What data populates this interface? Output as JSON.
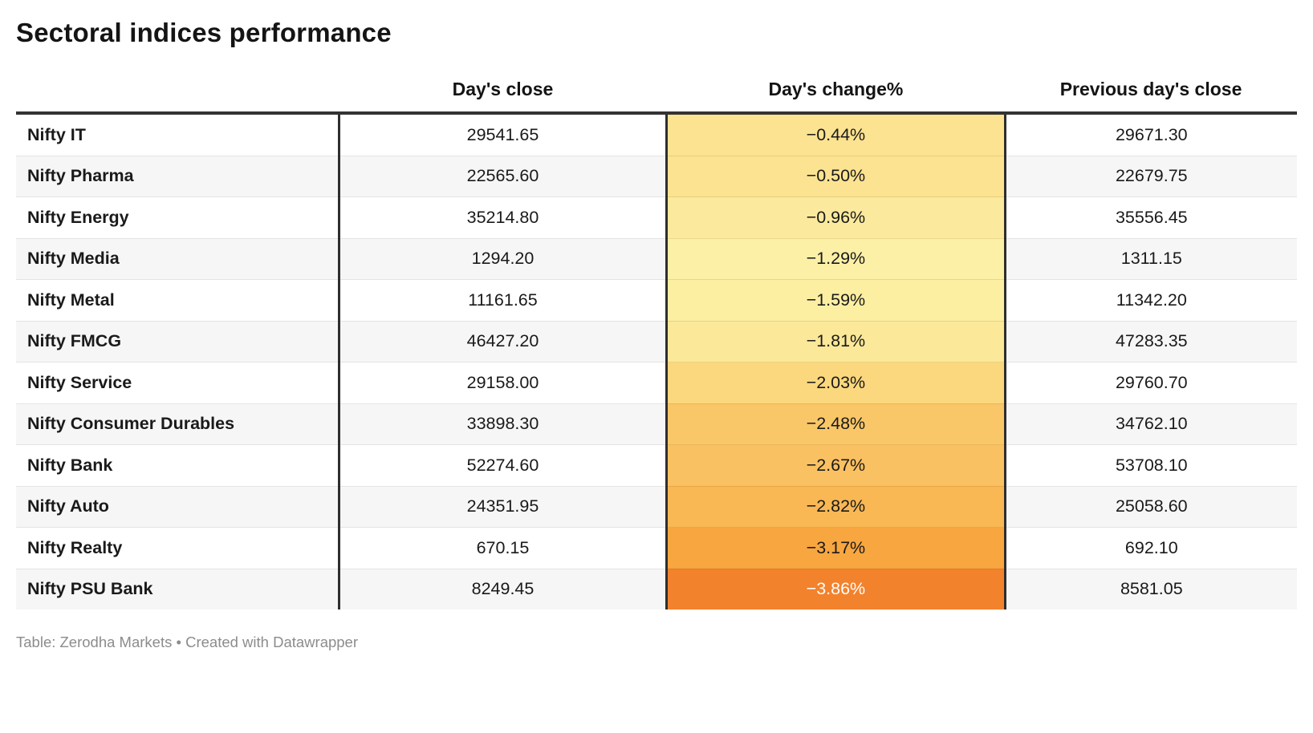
{
  "title": "Sectoral indices performance",
  "table": {
    "columns": [
      "",
      "Day's close",
      "Day's change%",
      "Previous day's close"
    ],
    "rows": [
      {
        "name": "Nifty IT",
        "close": "29541.65",
        "change": "−0.44%",
        "prev": "29671.30",
        "change_color": "#fbe391",
        "change_text_color": "#1a1a1a"
      },
      {
        "name": "Nifty Pharma",
        "close": "22565.60",
        "change": "−0.50%",
        "prev": "22679.75",
        "change_color": "#fbe391",
        "change_text_color": "#1a1a1a"
      },
      {
        "name": "Nifty Energy",
        "close": "35214.80",
        "change": "−0.96%",
        "prev": "35556.45",
        "change_color": "#fbea9d",
        "change_text_color": "#1a1a1a"
      },
      {
        "name": "Nifty Media",
        "close": "1294.20",
        "change": "−1.29%",
        "prev": "1311.15",
        "change_color": "#fcf0a7",
        "change_text_color": "#1a1a1a"
      },
      {
        "name": "Nifty Metal",
        "close": "11161.65",
        "change": "−1.59%",
        "prev": "11342.20",
        "change_color": "#fcefa2",
        "change_text_color": "#1a1a1a"
      },
      {
        "name": "Nifty FMCG",
        "close": "46427.20",
        "change": "−1.81%",
        "prev": "47283.35",
        "change_color": "#fbe898",
        "change_text_color": "#1a1a1a"
      },
      {
        "name": "Nifty Service",
        "close": "29158.00",
        "change": "−2.03%",
        "prev": "29760.70",
        "change_color": "#fbd87d",
        "change_text_color": "#1a1a1a"
      },
      {
        "name": "Nifty Consumer Durables",
        "close": "33898.30",
        "change": "−2.48%",
        "prev": "34762.10",
        "change_color": "#fac768",
        "change_text_color": "#1a1a1a"
      },
      {
        "name": "Nifty Bank",
        "close": "52274.60",
        "change": "−2.67%",
        "prev": "53708.10",
        "change_color": "#fac162",
        "change_text_color": "#1a1a1a"
      },
      {
        "name": "Nifty Auto",
        "close": "24351.95",
        "change": "−2.82%",
        "prev": "25058.60",
        "change_color": "#f9b854",
        "change_text_color": "#1a1a1a"
      },
      {
        "name": "Nifty Realty",
        "close": "670.15",
        "change": "−3.17%",
        "prev": "692.10",
        "change_color": "#f8a63f",
        "change_text_color": "#1a1a1a"
      },
      {
        "name": "Nifty PSU Bank",
        "close": "8249.45",
        "change": "−3.86%",
        "prev": "8581.05",
        "change_color": "#f3822d",
        "change_text_color": "#ffffff"
      }
    ]
  },
  "footer": "Table: Zerodha Markets • Created with Datawrapper",
  "colors": {
    "heading_text": "#141414",
    "body_text": "#1a1a1a",
    "top_border": "#333333",
    "column_divider": "#2e2e2e",
    "row_divider": "#e4e4e4",
    "zebra_stripe": "#f6f6f6",
    "footer_text": "#8c8c8c",
    "heatmap_min": "#fcf0a7",
    "heatmap_max": "#f3822d"
  }
}
